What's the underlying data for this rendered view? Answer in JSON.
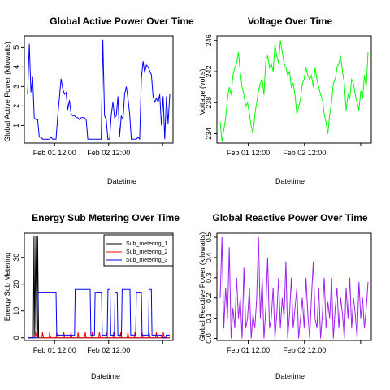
{
  "chart_data": [
    {
      "type": "line",
      "title": "Global Active Power Over Time",
      "xlabel": "Datetime",
      "ylabel": "Global Active Power (kilowatts)",
      "x_ticks": [
        "Feb 01 12:00",
        "Feb 02 12:00"
      ],
      "y_ticks": [
        1,
        2,
        3,
        4,
        5
      ],
      "ylim": [
        0.1,
        5.6
      ],
      "series": [
        {
          "color": "#0000ff",
          "values": [
            2.6,
            5.2,
            2.7,
            3.5,
            1.4,
            1.3,
            1.3,
            0.4,
            0.4,
            0.3,
            0.3,
            0.3,
            0.3,
            0.3,
            0.4,
            0.3,
            0.3,
            0.3,
            1.5,
            2.4,
            3.4,
            2.9,
            2.6,
            2.7,
            1.8,
            2.3,
            1.6,
            1.5,
            1.5,
            1.4,
            1.4,
            1.3,
            1.4,
            1.4,
            1.4,
            1.3,
            0.3,
            0.3,
            0.3,
            0.3,
            0.3,
            0.3,
            0.3,
            0.3,
            0.3,
            5.4,
            1.5,
            1.3,
            0.3,
            0.3,
            1.5,
            2.2,
            1.4,
            1.5,
            2.5,
            0.4,
            1.5,
            1.3,
            2.6,
            3.0,
            2.4,
            1.6,
            0.3,
            0.3,
            0.3,
            0.3,
            0.4,
            0.3,
            3.4,
            4.3,
            3.7,
            4.1,
            4.0,
            3.8,
            3.6,
            2.5,
            2.2,
            2.4,
            2.2,
            2.6,
            1.0,
            2.5,
            0.3,
            2.5,
            1.1,
            2.6
          ]
        }
      ]
    },
    {
      "type": "line",
      "title": "Voltage Over Time",
      "xlabel": "Datetime",
      "ylabel": "Voltage (volts)",
      "x_ticks": [
        "Feb 01 12:00",
        "Feb 02 12:00"
      ],
      "y_ticks": [
        234,
        238,
        242,
        246
      ],
      "ylim": [
        232.8,
        246.6
      ],
      "series": [
        {
          "color": "#00ff00",
          "values": [
            235.5,
            233.0,
            234.5,
            236.0,
            238.5,
            240.0,
            239.0,
            241.5,
            242.5,
            243.0,
            244.5,
            242.0,
            240.0,
            239.0,
            237.5,
            238.0,
            236.5,
            235.0,
            234.0,
            236.5,
            238.0,
            239.5,
            240.5,
            241.0,
            239.0,
            243.5,
            244.0,
            242.5,
            243.0,
            242.0,
            245.5,
            244.0,
            243.0,
            246.0,
            244.5,
            243.0,
            242.5,
            241.5,
            242.0,
            240.0,
            240.5,
            239.0,
            236.5,
            237.5,
            238.5,
            240.5,
            241.0,
            242.5,
            241.5,
            241.0,
            241.5,
            240.0,
            242.5,
            241.0,
            240.0,
            239.0,
            238.5,
            236.5,
            235.5,
            234.0,
            236.5,
            238.0,
            240.5,
            241.0,
            242.5,
            243.0,
            244.0,
            242.0,
            240.5,
            237.0,
            239.0,
            238.5,
            241.0,
            240.5,
            239.0,
            238.0,
            237.0,
            239.5,
            238.5,
            241.5,
            240.0,
            244.5
          ]
        }
      ]
    },
    {
      "type": "line",
      "title": "Energy Sub Metering Over Time",
      "xlabel": "Datetime",
      "ylabel": "Energy Sub Metering",
      "x_ticks": [
        "Feb 01 12:00",
        "Feb 02 12:00"
      ],
      "y_ticks": [
        0,
        10,
        20,
        30
      ],
      "ylim": [
        -1,
        39
      ],
      "legend": {
        "position": "top-right",
        "entries": [
          "Sub_metering_1",
          "Sub_metering_2",
          "Sub_metering_3"
        ]
      },
      "series": [
        {
          "name": "Sub_metering_1",
          "color": "#000000",
          "points": [
            [
              0,
              0
            ],
            [
              0.04,
              0
            ],
            [
              0.045,
              38
            ],
            [
              0.05,
              0
            ],
            [
              0.058,
              38
            ],
            [
              0.065,
              0
            ],
            [
              0.07,
              38
            ],
            [
              0.078,
              0
            ],
            [
              1,
              0
            ]
          ]
        },
        {
          "name": "Sub_metering_2",
          "color": "#ff0000",
          "points": [
            [
              0,
              0
            ],
            [
              0.05,
              0
            ],
            [
              0.055,
              2
            ],
            [
              0.065,
              0
            ],
            [
              0.1,
              0
            ],
            [
              0.105,
              2
            ],
            [
              0.112,
              0
            ],
            [
              0.15,
              0
            ],
            [
              0.155,
              2
            ],
            [
              0.162,
              0
            ],
            [
              0.2,
              0
            ],
            [
              0.205,
              2
            ],
            [
              0.212,
              0
            ],
            [
              0.25,
              0
            ],
            [
              0.255,
              2
            ],
            [
              0.262,
              0
            ],
            [
              0.3,
              0
            ],
            [
              0.305,
              2
            ],
            [
              0.312,
              0
            ],
            [
              0.35,
              0
            ],
            [
              0.355,
              2
            ],
            [
              0.362,
              0
            ],
            [
              0.4,
              0
            ],
            [
              0.405,
              2
            ],
            [
              0.412,
              0
            ],
            [
              0.45,
              0
            ],
            [
              0.455,
              2
            ],
            [
              0.462,
              0
            ],
            [
              0.5,
              0
            ],
            [
              0.505,
              2
            ],
            [
              0.512,
              0
            ],
            [
              0.55,
              0
            ],
            [
              0.555,
              2
            ],
            [
              0.562,
              0
            ],
            [
              0.6,
              0
            ],
            [
              0.605,
              2
            ],
            [
              0.612,
              0
            ],
            [
              0.65,
              0
            ],
            [
              0.655,
              2
            ],
            [
              0.662,
              0
            ],
            [
              0.7,
              0
            ],
            [
              0.705,
              2
            ],
            [
              0.712,
              0
            ],
            [
              0.75,
              0
            ],
            [
              0.755,
              2
            ],
            [
              0.762,
              0
            ],
            [
              0.8,
              0
            ],
            [
              0.805,
              2
            ],
            [
              0.812,
              0
            ],
            [
              0.85,
              0
            ],
            [
              0.855,
              2
            ],
            [
              0.862,
              0
            ],
            [
              0.9,
              0
            ],
            [
              0.905,
              2
            ],
            [
              0.912,
              0
            ],
            [
              0.95,
              0
            ],
            [
              0.955,
              2
            ],
            [
              0.962,
              0
            ],
            [
              1,
              0
            ]
          ]
        },
        {
          "name": "Sub_metering_3",
          "color": "#0000ff",
          "points": [
            [
              0,
              0
            ],
            [
              0.07,
              0
            ],
            [
              0.075,
              17
            ],
            [
              0.2,
              17
            ],
            [
              0.205,
              1
            ],
            [
              0.27,
              1
            ],
            [
              0.275,
              1
            ],
            [
              0.33,
              1
            ],
            [
              0.335,
              18
            ],
            [
              0.44,
              18
            ],
            [
              0.445,
              1
            ],
            [
              0.47,
              1
            ],
            [
              0.475,
              17
            ],
            [
              0.52,
              17
            ],
            [
              0.525,
              1
            ],
            [
              0.56,
              1
            ],
            [
              0.565,
              18
            ],
            [
              0.58,
              18
            ],
            [
              0.585,
              1
            ],
            [
              0.61,
              1
            ],
            [
              0.615,
              17
            ],
            [
              0.63,
              17
            ],
            [
              0.635,
              1
            ],
            [
              0.66,
              1
            ],
            [
              0.665,
              18
            ],
            [
              0.72,
              18
            ],
            [
              0.725,
              1
            ],
            [
              0.76,
              1
            ],
            [
              0.765,
              17
            ],
            [
              0.8,
              17
            ],
            [
              0.805,
              1
            ],
            [
              0.85,
              1
            ],
            [
              0.855,
              18
            ],
            [
              0.87,
              18
            ],
            [
              0.875,
              1
            ],
            [
              0.94,
              1
            ],
            [
              0.945,
              0
            ],
            [
              0.97,
              0
            ],
            [
              0.975,
              1
            ],
            [
              1,
              1
            ]
          ]
        }
      ]
    },
    {
      "type": "line",
      "title": "Global Reactive Power Over Time",
      "xlabel": "Datetime",
      "ylabel": "Global Reactive Power (kilowatts)",
      "x_ticks": [
        "Feb 01 12:00",
        "Feb 02 12:00"
      ],
      "y_ticks": [
        0.0,
        0.1,
        0.2,
        0.3,
        0.4,
        0.5
      ],
      "ylim": [
        -0.01,
        0.52
      ],
      "series": [
        {
          "color": "#a020f0",
          "values": [
            0.2,
            0.5,
            0.05,
            0.25,
            0.1,
            0.45,
            0.0,
            0.15,
            0.05,
            0.3,
            0.1,
            0.2,
            0.0,
            0.35,
            0.05,
            0.1,
            0.25,
            0.0,
            0.12,
            0.05,
            0.2,
            0.5,
            0.1,
            0.3,
            0.0,
            0.15,
            0.4,
            0.05,
            0.1,
            0.25,
            0.0,
            0.12,
            0.3,
            0.05,
            0.2,
            0.1,
            0.38,
            0.0,
            0.12,
            0.3,
            0.05,
            0.15,
            0.25,
            0.0,
            0.1,
            0.2,
            0.05,
            0.3,
            0.12,
            0.0,
            0.2,
            0.38,
            0.1,
            0.05,
            0.25,
            0.0,
            0.12,
            0.3,
            0.05,
            0.18,
            0.1,
            0.3,
            0.0,
            0.15,
            0.25,
            0.05,
            0.2,
            0.12,
            0.0,
            0.25,
            0.1,
            0.3,
            0.05,
            0.2,
            0.12,
            0.0,
            0.28,
            0.1,
            0.2,
            0.05,
            0.15,
            0.28
          ]
        }
      ]
    }
  ]
}
